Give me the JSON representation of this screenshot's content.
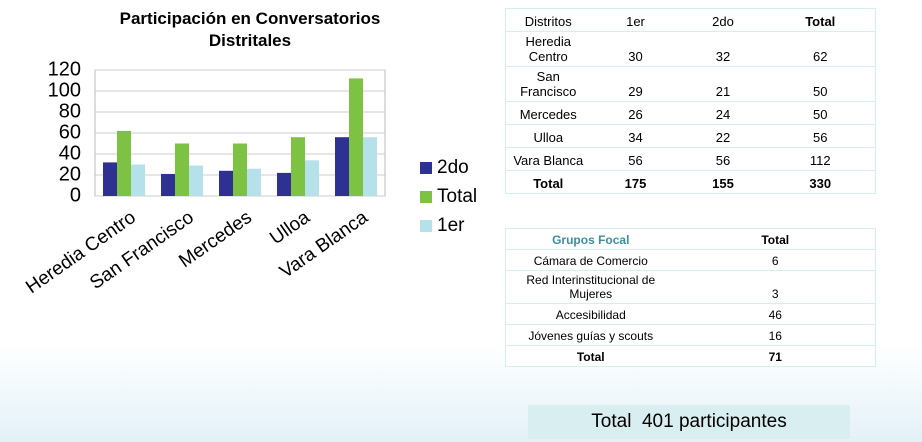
{
  "chart_data": {
    "type": "bar",
    "title": "Participación en Conversatorios Distritales",
    "categories": [
      "Heredia Centro",
      "San Francisco",
      "Mercedes",
      "Ulloa",
      "Vara Blanca"
    ],
    "series": [
      {
        "name": "2do",
        "color": "#2e3192",
        "values": [
          32,
          21,
          24,
          22,
          56
        ]
      },
      {
        "name": "Total",
        "color": "#7dc242",
        "values": [
          62,
          50,
          50,
          56,
          112
        ]
      },
      {
        "name": "1er",
        "color": "#b7e1ea",
        "values": [
          30,
          29,
          26,
          34,
          56
        ]
      }
    ],
    "ylim": [
      0,
      120
    ],
    "yticks": [
      0,
      20,
      40,
      60,
      80,
      100,
      120
    ],
    "grid": true,
    "legend": "right"
  },
  "districts_table": {
    "header": [
      "Distritos",
      "1er",
      "2do",
      "Total"
    ],
    "rows": [
      [
        "Heredia Centro",
        30,
        32,
        62
      ],
      [
        "San Francisco",
        29,
        21,
        50
      ],
      [
        "Mercedes",
        26,
        24,
        50
      ],
      [
        "Ulloa",
        34,
        22,
        56
      ],
      [
        "Vara Blanca",
        56,
        56,
        112
      ],
      [
        "Total",
        175,
        155,
        330
      ]
    ]
  },
  "focus_groups_table": {
    "header": [
      "Grupos Focal",
      "Total"
    ],
    "rows": [
      [
        "Cámara de Comercio",
        6
      ],
      [
        "Red Interinstitucional de Mujeres",
        3
      ],
      [
        "Accesibilidad",
        46
      ],
      [
        "Jóvenes guías y scouts",
        16
      ],
      [
        "Total",
        71
      ]
    ]
  },
  "footer": "Total  401 participantes"
}
